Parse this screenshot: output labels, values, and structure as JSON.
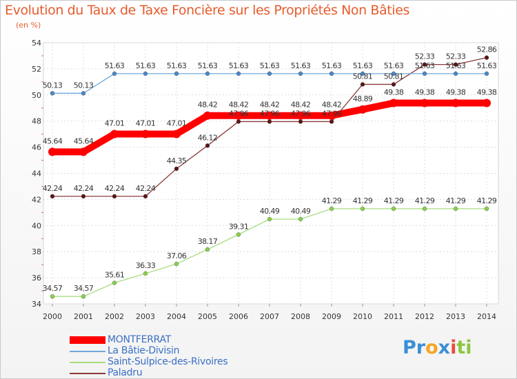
{
  "chart_data": {
    "type": "line",
    "title": "Evolution du Taux de Taxe Foncière sur les Propriétés Non Bâties",
    "subtitle": "(en %)",
    "x": [
      "2000",
      "2001",
      "2002",
      "2003",
      "2004",
      "2005",
      "2006",
      "2007",
      "2008",
      "2009",
      "2010",
      "2011",
      "2012",
      "2013",
      "2014"
    ],
    "ylim": [
      34,
      54
    ],
    "yticks": [
      "34",
      "36",
      "38",
      "40",
      "42",
      "44",
      "46",
      "48",
      "50",
      "52",
      "54"
    ],
    "grid": true,
    "series": [
      {
        "name": "MONTFERRAT",
        "color": "#ff0000",
        "thick": true,
        "values": [
          45.64,
          45.64,
          47.01,
          47.01,
          47.01,
          48.42,
          48.42,
          48.42,
          48.42,
          48.42,
          48.89,
          49.38,
          49.38,
          49.38,
          49.38
        ],
        "labels": [
          "45.64",
          "45.64",
          "47.01",
          "47.01",
          "47.01",
          "48.42",
          "48.42",
          "48.42",
          "48.42",
          "48.42",
          "48.89",
          "49.38",
          "49.38",
          "49.38",
          "49.38"
        ]
      },
      {
        "name": "La Bâtie-Divisin",
        "color": "#6fa8dc",
        "marker": "#4a86c8",
        "thick": false,
        "values": [
          50.13,
          50.13,
          51.63,
          51.63,
          51.63,
          51.63,
          51.63,
          51.63,
          51.63,
          51.63,
          51.63,
          51.63,
          51.63,
          51.63,
          51.63
        ],
        "labels": [
          "50.13",
          "50.13",
          "51.63",
          "51.63",
          "51.63",
          "51.63",
          "51.63",
          "51.63",
          "51.63",
          "51.63",
          "51.63",
          "51.63",
          "51.63",
          "51.63",
          "51.63"
        ]
      },
      {
        "name": "Saint-Sulpice-des-Rivoires",
        "color": "#a8dc80",
        "marker": "#86d04a",
        "thick": false,
        "values": [
          34.57,
          34.57,
          35.61,
          36.33,
          37.06,
          38.17,
          39.31,
          40.49,
          40.49,
          41.29,
          41.29,
          41.29,
          41.29,
          41.29,
          41.29
        ],
        "labels": [
          "34.57",
          "34.57",
          "35.61",
          "36.33",
          "37.06",
          "38.17",
          "39.31",
          "40.49",
          "40.49",
          "41.29",
          "41.29",
          "41.29",
          "41.29",
          "41.29",
          "41.29"
        ]
      },
      {
        "name": "Paladru",
        "color": "#8b3a3a",
        "marker": "#5a1414",
        "thick": false,
        "values": [
          42.24,
          42.24,
          42.24,
          42.24,
          44.35,
          46.12,
          47.96,
          47.96,
          47.96,
          47.96,
          50.81,
          50.81,
          52.33,
          52.33,
          52.86
        ],
        "labels": [
          "42.24",
          "42.24",
          "42.24",
          "42.24",
          "44.35",
          "46.12",
          "47.96",
          "47.96",
          "47.96",
          "47.96",
          "50.81",
          "50.81",
          "52.33",
          "52.33",
          "52.86"
        ]
      }
    ]
  },
  "logo": {
    "text_parts": [
      "Pr",
      "o",
      "x",
      "i",
      "ti"
    ]
  }
}
